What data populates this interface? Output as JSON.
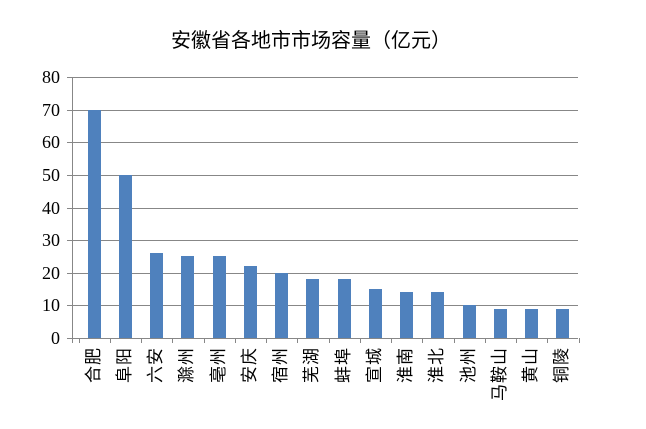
{
  "chart_data": {
    "type": "bar",
    "title": "安徽省各地市市场容量（亿元）",
    "categories": [
      "合肥",
      "阜阳",
      "六安",
      "滁州",
      "亳州",
      "安庆",
      "宿州",
      "芜湖",
      "蚌埠",
      "宣城",
      "淮南",
      "淮北",
      "池州",
      "马鞍山",
      "黄山",
      "铜陵"
    ],
    "values": [
      70,
      50,
      26,
      25,
      25,
      22,
      20,
      18,
      18,
      15,
      14,
      14,
      10,
      9,
      9,
      9
    ],
    "xlabel": "",
    "ylabel": "",
    "ylim": [
      0,
      80
    ],
    "y_tick_step": 10,
    "y_tick_labels": [
      "0",
      "10",
      "20",
      "30",
      "40",
      "50",
      "60",
      "70",
      "80"
    ],
    "grid": true,
    "legend_position": "none",
    "bar_color": "#4F81BD",
    "axis_color": "#878787",
    "gridline_color": "#878787",
    "background_color": "#FFFFFF"
  }
}
